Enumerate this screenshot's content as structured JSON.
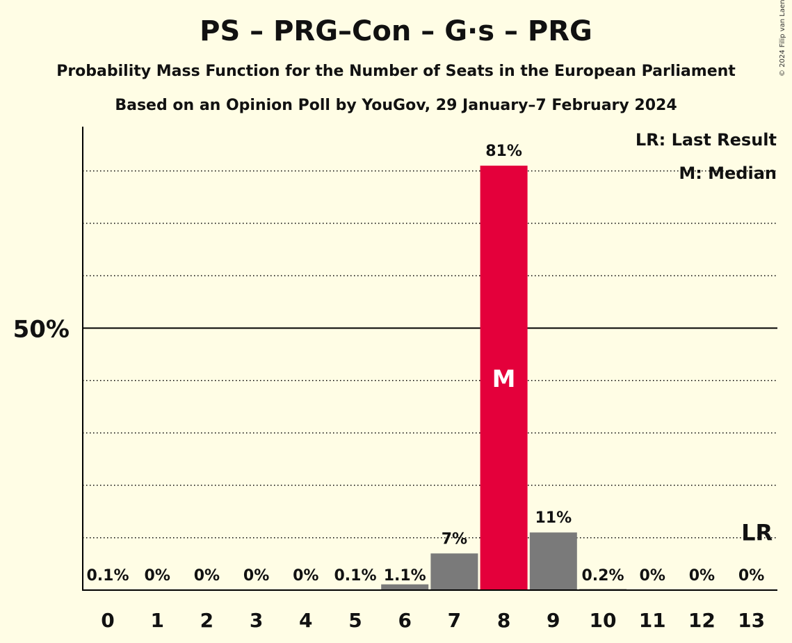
{
  "title": "PS – PRG–Con – G·s – PRG",
  "subtitle": "Probability Mass Function for the Number of Seats in the European Parliament",
  "subtitle2": "Based on an Opinion Poll by YouGov, 29 January–7 February 2024",
  "copyright": "© 2024 Filip van Laenen",
  "legend": {
    "last_result": "LR: Last Result",
    "median": "M: Median"
  },
  "colors": {
    "background": "#FFFDE5",
    "median_bar": "#E4003B",
    "other_bar": "#7A7A7A"
  },
  "chart_data": {
    "type": "bar",
    "categories": [
      "0",
      "1",
      "2",
      "3",
      "4",
      "5",
      "6",
      "7",
      "8",
      "9",
      "10",
      "11",
      "12",
      "13"
    ],
    "values": [
      0.1,
      0,
      0,
      0,
      0,
      0.1,
      1.1,
      7,
      81,
      11,
      0.2,
      0,
      0,
      0
    ],
    "value_labels": [
      "0.1%",
      "0%",
      "0%",
      "0%",
      "0%",
      "0.1%",
      "1.1%",
      "7%",
      "81%",
      "11%",
      "0.2%",
      "0%",
      "0%",
      "0%"
    ],
    "median_index": 8,
    "median_marker": "M",
    "last_result_index": 13,
    "last_result_marker": "LR",
    "ytick_label": "50%",
    "ylim": [
      0,
      88
    ],
    "gridlines": [
      10,
      20,
      30,
      40,
      50,
      60,
      70,
      80
    ],
    "major_gridline": 50,
    "grid": true,
    "legend_position": "top-right"
  }
}
